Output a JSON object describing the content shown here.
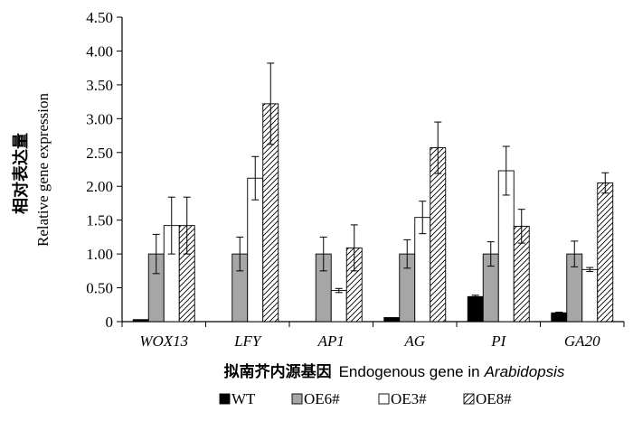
{
  "chart_data": {
    "type": "bar",
    "ylabel_cn": "相对表达量",
    "ylabel": "Relative gene expression",
    "xlabel_cn": "拟南芥内源基因",
    "xlabel": "Endogenous gene in",
    "xlabel_italic": "Arabidopsis",
    "ylim": [
      0,
      4.5
    ],
    "yticks": [
      "0",
      "0.50",
      "1.00",
      "1.50",
      "2.00",
      "2.50",
      "3.00",
      "3.50",
      "4.00",
      "4.50"
    ],
    "categories": [
      "WOX13",
      "LFY",
      "AP1",
      "AG",
      "PI",
      "GA20"
    ],
    "series": [
      {
        "name": "WT",
        "fill": "#000000",
        "values": [
          0.03,
          0.0,
          0.0,
          0.06,
          0.37,
          0.13
        ],
        "errors": [
          0.0,
          0.0,
          0.0,
          0.0,
          0.02,
          0.01
        ]
      },
      {
        "name": "OE6#",
        "fill": "#a6a6a6",
        "values": [
          1.0,
          1.0,
          1.0,
          1.0,
          1.0,
          1.0
        ],
        "errors": [
          0.29,
          0.25,
          0.25,
          0.21,
          0.18,
          0.19
        ]
      },
      {
        "name": "OE3#",
        "fill": "#ffffff",
        "values": [
          1.42,
          2.12,
          0.46,
          1.54,
          2.23,
          0.77
        ],
        "errors": [
          0.42,
          0.32,
          0.03,
          0.24,
          0.36,
          0.03
        ]
      },
      {
        "name": "OE8#",
        "fill": "hatch",
        "values": [
          1.42,
          3.22,
          1.09,
          2.57,
          1.41,
          2.05
        ],
        "errors": [
          0.42,
          0.6,
          0.34,
          0.38,
          0.25,
          0.15
        ]
      }
    ],
    "legend_position": "bottom",
    "grid": false
  }
}
